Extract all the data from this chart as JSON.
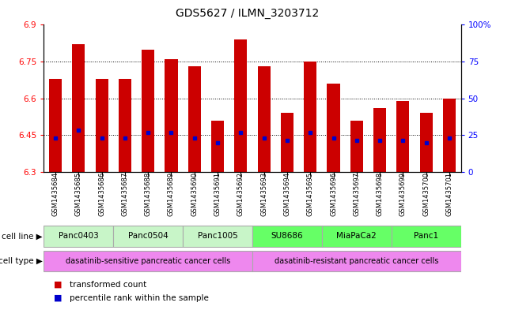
{
  "title": "GDS5627 / ILMN_3203712",
  "samples": [
    "GSM1435684",
    "GSM1435685",
    "GSM1435686",
    "GSM1435687",
    "GSM1435688",
    "GSM1435689",
    "GSM1435690",
    "GSM1435691",
    "GSM1435692",
    "GSM1435693",
    "GSM1435694",
    "GSM1435695",
    "GSM1435696",
    "GSM1435697",
    "GSM1435698",
    "GSM1435699",
    "GSM1435700",
    "GSM1435701"
  ],
  "bar_values": [
    6.68,
    6.82,
    6.68,
    6.68,
    6.8,
    6.76,
    6.73,
    6.51,
    6.84,
    6.73,
    6.54,
    6.75,
    6.66,
    6.51,
    6.56,
    6.59,
    6.54,
    6.6
  ],
  "percentile_values": [
    6.44,
    6.47,
    6.44,
    6.44,
    6.46,
    6.46,
    6.44,
    6.42,
    6.46,
    6.44,
    6.43,
    6.46,
    6.44,
    6.43,
    6.43,
    6.43,
    6.42,
    6.44
  ],
  "ymin": 6.3,
  "ymax": 6.9,
  "yticks": [
    6.3,
    6.45,
    6.6,
    6.75,
    6.9
  ],
  "ytick_labels": [
    "6.3",
    "6.45",
    "6.6",
    "6.75",
    "6.9"
  ],
  "right_yticks": [
    0,
    25,
    50,
    75,
    100
  ],
  "right_ytick_labels": [
    "0",
    "25",
    "50",
    "75",
    "100%"
  ],
  "bar_color": "#cc0000",
  "marker_color": "#0000cc",
  "cell_lines": [
    {
      "label": "Panc0403",
      "start": 0,
      "end": 3
    },
    {
      "label": "Panc0504",
      "start": 3,
      "end": 6
    },
    {
      "label": "Panc1005",
      "start": 6,
      "end": 9
    },
    {
      "label": "SU8686",
      "start": 9,
      "end": 12
    },
    {
      "label": "MiaPaCa2",
      "start": 12,
      "end": 15
    },
    {
      "label": "Panc1",
      "start": 15,
      "end": 18
    }
  ],
  "cell_line_colors_sensitive": "#c8f5c8",
  "cell_line_colors_resistant": "#66ff66",
  "cell_type_color": "#ee88ee",
  "cell_types": [
    {
      "label": "dasatinib-sensitive pancreatic cancer cells",
      "start": 0,
      "end": 9
    },
    {
      "label": "dasatinib-resistant pancreatic cancer cells",
      "start": 9,
      "end": 18
    }
  ],
  "legend_items": [
    {
      "label": "transformed count",
      "color": "#cc0000"
    },
    {
      "label": "percentile rank within the sample",
      "color": "#0000cc"
    }
  ],
  "label_cell_line": "cell line",
  "label_cell_type": "cell type",
  "grid_lines": [
    6.45,
    6.6,
    6.75
  ],
  "bar_width": 0.55
}
